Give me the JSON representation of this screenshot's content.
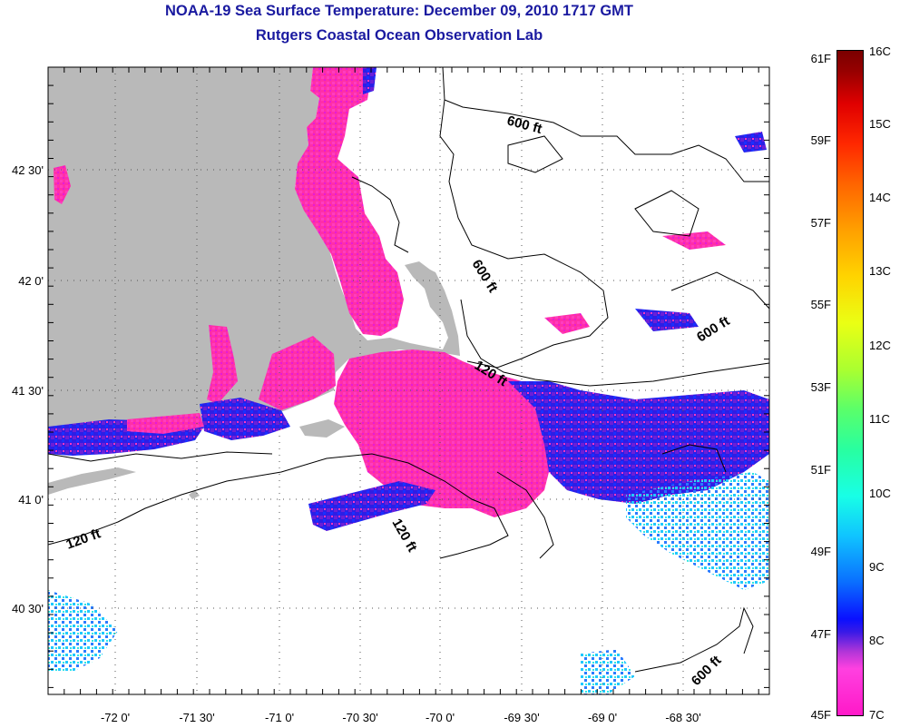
{
  "title_line1": "NOAA-19 Sea Surface Temperature:  December 09, 2010 1717 GMT",
  "title_line2": "Rutgers Coastal Ocean Observation Lab",
  "lat_labels": [
    "42 30'",
    "42 0'",
    "41 30'",
    "41 0'",
    "40 30'"
  ],
  "lon_labels": [
    "-72 0'",
    "-71 30'",
    "-71 0'",
    "-70 30'",
    "-70 0'",
    "-69 30'",
    "-69 0'",
    "-68 30'"
  ],
  "contour_labels": [
    "600 ft",
    "600 ft",
    "600 ft",
    "120 ft",
    "120 ft",
    "120 ft",
    "600 ft"
  ],
  "colorbar": {
    "fahrenheit": [
      "61F",
      "59F",
      "57F",
      "55F",
      "53F",
      "51F",
      "49F",
      "47F",
      "45F"
    ],
    "celsius": [
      "16C",
      "15C",
      "14C",
      "13C",
      "12C",
      "11C",
      "10C",
      "9C",
      "8C",
      "7C"
    ]
  },
  "colors": {
    "title": "#1a1aa0",
    "land": "#b9b9b9",
    "cold_sst": "#ff2fa8",
    "mid_sst": "#2a20e0",
    "warm_sst": "#18d4ff"
  }
}
